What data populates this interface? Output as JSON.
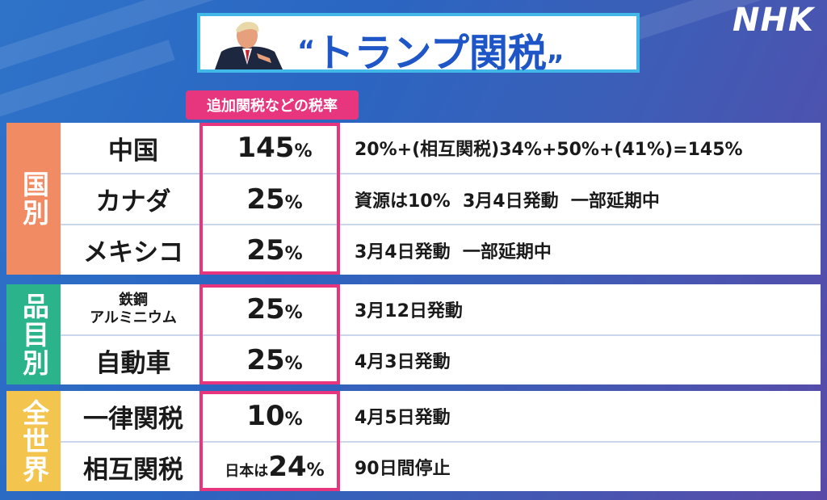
{
  "logo": "NHK",
  "title": {
    "open_quote": "“",
    "text": "トランプ関税",
    "close_quote": "„"
  },
  "rate_header": "追加関税などの税率",
  "groups": [
    {
      "label": "国別",
      "color": "#f08b64",
      "rows": [
        {
          "name": "中国",
          "rate": "145",
          "pct": "%",
          "note": "20%+(相互関税)34%+50%+(41%)=145%"
        },
        {
          "name": "カナダ",
          "rate": "25",
          "pct": "%",
          "note": "資源は10%  3月4日発動  一部延期中"
        },
        {
          "name": "メキシコ",
          "rate": "25",
          "pct": "%",
          "note": "3月4日発動  一部延期中"
        }
      ]
    },
    {
      "label": "品目別",
      "color": "#2bb38b",
      "rows": [
        {
          "name_line1": "鉄鋼",
          "name_line2": "アルミニウム",
          "rate": "25",
          "pct": "%",
          "note": "3月12日発動"
        },
        {
          "name": "自動車",
          "rate": "25",
          "pct": "%",
          "note": "4月3日発動"
        }
      ]
    },
    {
      "label": "全世界",
      "color": "#f3c54f",
      "rows": [
        {
          "name": "一律関税",
          "rate": "10",
          "pct": "%",
          "note": "4月5日発動"
        },
        {
          "name": "相互関税",
          "rate_prefix": "日本は",
          "rate": "24",
          "pct": "%",
          "note": "90日間停止"
        }
      ]
    }
  ],
  "colors": {
    "accent_pink": "#e8367e",
    "title_blue": "#1f56c7",
    "title_border": "#41b8e8"
  }
}
